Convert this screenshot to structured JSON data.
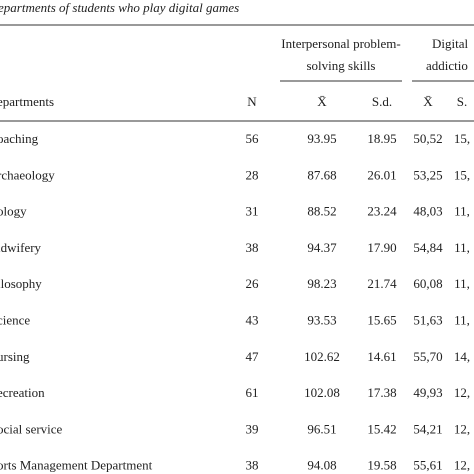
{
  "title": "epartments of students who play digital games",
  "header": {
    "group1": [
      "Interpersonal problem-",
      "solving skills"
    ],
    "group2": [
      "Digital",
      "addictio"
    ],
    "columns": [
      "epartments",
      "N",
      "X̄",
      "S.d.",
      "X̄",
      "S."
    ]
  },
  "table": {
    "rows": [
      [
        "oaching",
        "56",
        "93.95",
        "18.95",
        "50,52",
        "15,"
      ],
      [
        "rchaeology",
        "28",
        "87.68",
        "26.01",
        "53,25",
        "15,"
      ],
      [
        "ology",
        "31",
        "88.52",
        "23.24",
        "48,03",
        "11,"
      ],
      [
        "idwifery",
        "38",
        "94.37",
        "17.90",
        "54,84",
        "11,"
      ],
      [
        "ilosophy",
        "26",
        "98.23",
        "21.74",
        "60,08",
        "11,"
      ],
      [
        "cience",
        "43",
        "93.53",
        "15.65",
        "51,63",
        "11,"
      ],
      [
        "ursing",
        "47",
        "102.62",
        "14.61",
        "55,70",
        "14,"
      ],
      [
        "ecreation",
        "61",
        "102.08",
        "17.38",
        "49,93",
        "12,"
      ],
      [
        "ocial service",
        "39",
        "96.51",
        "15.42",
        "54,21",
        "12,"
      ],
      [
        "orts Management Department",
        "38",
        "94.08",
        "19.58",
        "55,61",
        "12,"
      ]
    ]
  }
}
